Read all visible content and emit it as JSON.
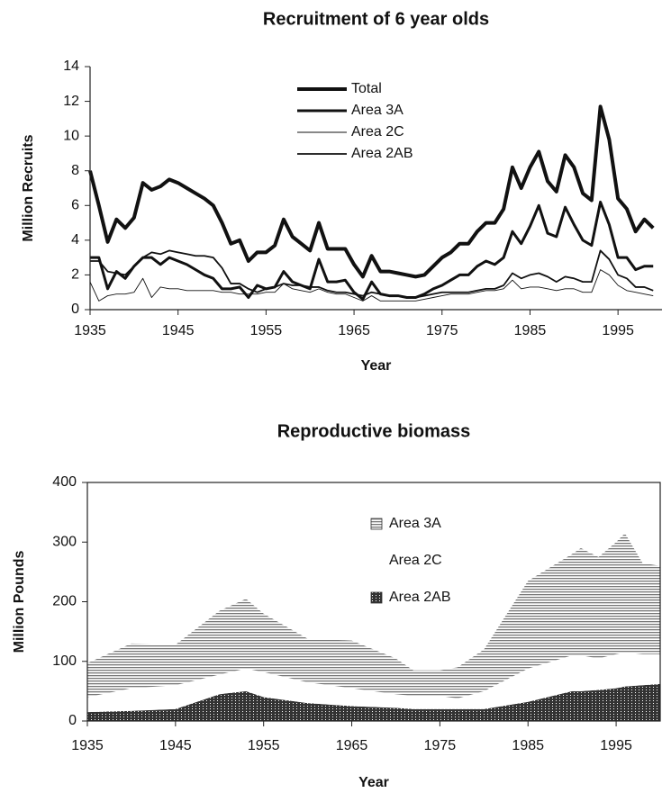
{
  "chart_data": [
    {
      "type": "line",
      "title": "Recruitment of 6 year olds",
      "x_label": "Year",
      "y_label": "Million Recruits",
      "xlim": [
        1935,
        2000
      ],
      "xticks": [
        1935,
        1945,
        1955,
        1965,
        1975,
        1985,
        1995
      ],
      "ylim": [
        0,
        14
      ],
      "yticks": [
        0,
        2,
        4,
        6,
        8,
        10,
        12,
        14
      ],
      "grid": false,
      "legend": "upper center",
      "x": [
        1935,
        1936,
        1937,
        1938,
        1939,
        1940,
        1941,
        1942,
        1943,
        1944,
        1945,
        1946,
        1947,
        1948,
        1949,
        1950,
        1951,
        1952,
        1953,
        1954,
        1955,
        1956,
        1957,
        1958,
        1959,
        1960,
        1961,
        1962,
        1963,
        1964,
        1965,
        1966,
        1967,
        1968,
        1969,
        1970,
        1971,
        1972,
        1973,
        1974,
        1975,
        1976,
        1977,
        1978,
        1979,
        1980,
        1981,
        1982,
        1983,
        1984,
        1985,
        1986,
        1987,
        1988,
        1989,
        1990,
        1991,
        1992,
        1993,
        1994,
        1995,
        1996,
        1997,
        1998,
        1999
      ],
      "series": [
        {
          "name": "Total",
          "color": "#111111",
          "line_width": 4,
          "values": [
            8,
            6,
            3.9,
            5.2,
            4.7,
            5.3,
            7.3,
            6.9,
            7.1,
            7.5,
            7.3,
            7,
            6.7,
            6.4,
            6,
            5,
            3.8,
            4,
            2.8,
            3.3,
            3.3,
            3.7,
            5.2,
            4.2,
            3.8,
            3.4,
            5,
            3.5,
            3.5,
            3.5,
            2.6,
            1.9,
            3.1,
            2.2,
            2.2,
            2.1,
            2,
            1.9,
            2,
            2.5,
            3,
            3.3,
            3.8,
            3.8,
            4.5,
            5,
            5,
            5.8,
            8.2,
            7,
            8.2,
            9.1,
            7.4,
            6.8,
            8.9,
            8.2,
            6.7,
            6.3,
            11.7,
            9.8,
            6.4,
            5.8,
            4.5,
            5.2,
            4.7
          ]
        },
        {
          "name": "Area 3A",
          "color": "#111111",
          "line_width": 3,
          "values": [
            3,
            3,
            1.2,
            2.2,
            1.8,
            2.5,
            3,
            3,
            2.6,
            3,
            2.8,
            2.6,
            2.3,
            2,
            1.8,
            1.2,
            1.2,
            1.3,
            0.7,
            1.4,
            1.2,
            1.3,
            2.2,
            1.6,
            1.4,
            1.2,
            2.9,
            1.6,
            1.6,
            1.7,
            1,
            0.6,
            1.6,
            0.9,
            0.8,
            0.8,
            0.7,
            0.7,
            0.9,
            1.2,
            1.4,
            1.7,
            2,
            2,
            2.5,
            2.8,
            2.6,
            3,
            4.5,
            3.8,
            4.8,
            6,
            4.4,
            4.2,
            5.9,
            4.9,
            4,
            3.7,
            6.2,
            4.9,
            3,
            3,
            2.3,
            2.5,
            2.5
          ]
        },
        {
          "name": "Area 2C",
          "color": "#111111",
          "line_width": 0.9,
          "values": [
            1.6,
            0.5,
            0.8,
            0.9,
            0.9,
            1,
            1.8,
            0.7,
            1.3,
            1.2,
            1.2,
            1.1,
            1.1,
            1.1,
            1.1,
            1,
            1,
            0.9,
            0.9,
            0.9,
            1,
            1,
            1.5,
            1.2,
            1.1,
            1,
            1.2,
            1,
            0.9,
            0.9,
            0.7,
            0.5,
            0.8,
            0.5,
            0.5,
            0.5,
            0.5,
            0.5,
            0.6,
            0.7,
            0.8,
            0.9,
            0.9,
            0.9,
            1,
            1.1,
            1.1,
            1.2,
            1.7,
            1.2,
            1.3,
            1.3,
            1.2,
            1.1,
            1.2,
            1.2,
            1,
            1,
            2.3,
            2,
            1.4,
            1.1,
            1,
            0.9,
            0.8
          ]
        },
        {
          "name": "Area 2AB",
          "color": "#111111",
          "line_width": 1.8,
          "values": [
            2.8,
            2.8,
            2.2,
            2.1,
            2,
            2.5,
            3,
            3.3,
            3.2,
            3.4,
            3.3,
            3.2,
            3.1,
            3.1,
            3,
            2.4,
            1.5,
            1.5,
            1.2,
            1,
            1.2,
            1.3,
            1.5,
            1.4,
            1.4,
            1.3,
            1.3,
            1.1,
            1,
            1,
            0.9,
            0.8,
            1,
            0.9,
            0.8,
            0.8,
            0.7,
            0.7,
            0.8,
            0.9,
            1,
            1,
            1,
            1,
            1.1,
            1.2,
            1.2,
            1.4,
            2.1,
            1.8,
            2,
            2.1,
            1.9,
            1.6,
            1.9,
            1.8,
            1.6,
            1.6,
            3.4,
            2.9,
            2,
            1.8,
            1.3,
            1.3,
            1.1
          ]
        }
      ]
    },
    {
      "type": "area",
      "stacked": true,
      "title": "Reproductive biomass",
      "x_label": "Year",
      "y_label": "Million Pounds",
      "xlim": [
        1935,
        2000
      ],
      "xticks": [
        1935,
        1945,
        1955,
        1965,
        1975,
        1985,
        1995
      ],
      "ylim": [
        0,
        400
      ],
      "yticks": [
        0,
        100,
        200,
        300,
        400
      ],
      "grid": false,
      "legend": "upper right",
      "x": [
        1935,
        1940,
        1945,
        1950,
        1953,
        1955,
        1960,
        1965,
        1970,
        1972,
        1975,
        1977,
        1980,
        1985,
        1990,
        1991,
        1993,
        1995,
        1996,
        1998,
        2000
      ],
      "series": [
        {
          "name": "Area 2AB",
          "color": "#333333",
          "pattern": "dots",
          "values": [
            15,
            17,
            20,
            45,
            50,
            40,
            30,
            25,
            22,
            20,
            20,
            20,
            20,
            32,
            50,
            50,
            52,
            55,
            58,
            60,
            62
          ]
        },
        {
          "name": "Area 2C",
          "color": "#ffffff",
          "pattern": "none",
          "values": [
            25,
            38,
            40,
            33,
            38,
            42,
            35,
            30,
            23,
            22,
            22,
            18,
            30,
            56,
            60,
            60,
            53,
            57,
            57,
            52,
            50
          ]
        },
        {
          "name": "Area 3A",
          "color": "#777777",
          "pattern": "hlines",
          "values": [
            57,
            75,
            68,
            107,
            117,
            98,
            73,
            80,
            60,
            43,
            43,
            52,
            70,
            147,
            170,
            180,
            170,
            188,
            200,
            153,
            148
          ]
        }
      ]
    }
  ]
}
